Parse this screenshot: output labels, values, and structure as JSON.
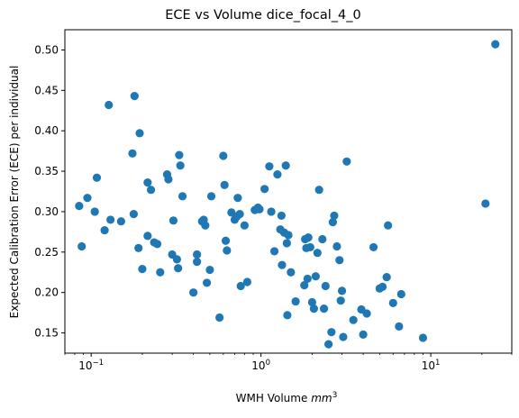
{
  "chart_data": {
    "type": "scatter",
    "title": "ECE vs Volume dice_focal_4_0",
    "xlabel_text": "WMH Volume ",
    "xlabel_math": "mm",
    "xlabel_exp": "3",
    "ylabel": "Expected Calibration Error (ECE) per individual",
    "x_scale": "log",
    "xlim": [
      0.07,
      30
    ],
    "ylim": [
      0.125,
      0.525
    ],
    "x_ticks": [
      {
        "base": "10",
        "exp": "−1",
        "value": 0.1
      },
      {
        "base": "10",
        "exp": "0",
        "value": 1
      },
      {
        "base": "10",
        "exp": "1",
        "value": 10
      }
    ],
    "y_ticks": [
      "0.15",
      "0.20",
      "0.25",
      "0.30",
      "0.35",
      "0.40",
      "0.45",
      "0.50"
    ],
    "marker_color": "#1f77b4",
    "grid": false,
    "points": [
      [
        0.085,
        0.307
      ],
      [
        0.088,
        0.257
      ],
      [
        0.095,
        0.317
      ],
      [
        0.105,
        0.3
      ],
      [
        0.108,
        0.342
      ],
      [
        0.12,
        0.277
      ],
      [
        0.127,
        0.432
      ],
      [
        0.13,
        0.29
      ],
      [
        0.15,
        0.288
      ],
      [
        0.175,
        0.372
      ],
      [
        0.178,
        0.297
      ],
      [
        0.18,
        0.443
      ],
      [
        0.19,
        0.255
      ],
      [
        0.193,
        0.397
      ],
      [
        0.2,
        0.229
      ],
      [
        0.215,
        0.336
      ],
      [
        0.215,
        0.27
      ],
      [
        0.225,
        0.327
      ],
      [
        0.235,
        0.262
      ],
      [
        0.245,
        0.26
      ],
      [
        0.255,
        0.225
      ],
      [
        0.28,
        0.346
      ],
      [
        0.285,
        0.34
      ],
      [
        0.3,
        0.247
      ],
      [
        0.305,
        0.289
      ],
      [
        0.32,
        0.241
      ],
      [
        0.325,
        0.23
      ],
      [
        0.33,
        0.37
      ],
      [
        0.335,
        0.357
      ],
      [
        0.345,
        0.319
      ],
      [
        0.4,
        0.2
      ],
      [
        0.42,
        0.247
      ],
      [
        0.42,
        0.238
      ],
      [
        0.45,
        0.288
      ],
      [
        0.46,
        0.29
      ],
      [
        0.47,
        0.283
      ],
      [
        0.48,
        0.212
      ],
      [
        0.5,
        0.228
      ],
      [
        0.51,
        0.319
      ],
      [
        0.57,
        0.169
      ],
      [
        0.6,
        0.369
      ],
      [
        0.61,
        0.333
      ],
      [
        0.62,
        0.264
      ],
      [
        0.63,
        0.252
      ],
      [
        0.67,
        0.299
      ],
      [
        0.7,
        0.29
      ],
      [
        0.72,
        0.294
      ],
      [
        0.73,
        0.317
      ],
      [
        0.75,
        0.297
      ],
      [
        0.76,
        0.208
      ],
      [
        0.8,
        0.283
      ],
      [
        0.83,
        0.213
      ],
      [
        0.92,
        0.302
      ],
      [
        0.96,
        0.305
      ],
      [
        0.98,
        0.303
      ],
      [
        1.05,
        0.328
      ],
      [
        1.12,
        0.356
      ],
      [
        1.15,
        0.3
      ],
      [
        1.2,
        0.251
      ],
      [
        1.25,
        0.346
      ],
      [
        1.3,
        0.278
      ],
      [
        1.32,
        0.295
      ],
      [
        1.33,
        0.234
      ],
      [
        1.37,
        0.274
      ],
      [
        1.4,
        0.357
      ],
      [
        1.42,
        0.261
      ],
      [
        1.43,
        0.172
      ],
      [
        1.45,
        0.271
      ],
      [
        1.5,
        0.225
      ],
      [
        1.6,
        0.189
      ],
      [
        1.8,
        0.209
      ],
      [
        1.82,
        0.266
      ],
      [
        1.85,
        0.255
      ],
      [
        1.88,
        0.217
      ],
      [
        1.9,
        0.268
      ],
      [
        1.95,
        0.256
      ],
      [
        2.0,
        0.188
      ],
      [
        2.05,
        0.18
      ],
      [
        2.1,
        0.22
      ],
      [
        2.15,
        0.249
      ],
      [
        2.2,
        0.327
      ],
      [
        2.3,
        0.266
      ],
      [
        2.35,
        0.18
      ],
      [
        2.4,
        0.208
      ],
      [
        2.5,
        0.136
      ],
      [
        2.6,
        0.151
      ],
      [
        2.65,
        0.287
      ],
      [
        2.7,
        0.295
      ],
      [
        2.8,
        0.257
      ],
      [
        2.9,
        0.24
      ],
      [
        2.95,
        0.19
      ],
      [
        3.0,
        0.202
      ],
      [
        3.05,
        0.145
      ],
      [
        3.2,
        0.362
      ],
      [
        3.5,
        0.166
      ],
      [
        3.9,
        0.179
      ],
      [
        4.0,
        0.148
      ],
      [
        4.2,
        0.174
      ],
      [
        4.6,
        0.256
      ],
      [
        5.0,
        0.205
      ],
      [
        5.2,
        0.207
      ],
      [
        5.5,
        0.219
      ],
      [
        5.6,
        0.283
      ],
      [
        6.0,
        0.187
      ],
      [
        6.5,
        0.158
      ],
      [
        6.7,
        0.198
      ],
      [
        9.0,
        0.144
      ],
      [
        21.0,
        0.31
      ],
      [
        24.0,
        0.507
      ]
    ]
  }
}
